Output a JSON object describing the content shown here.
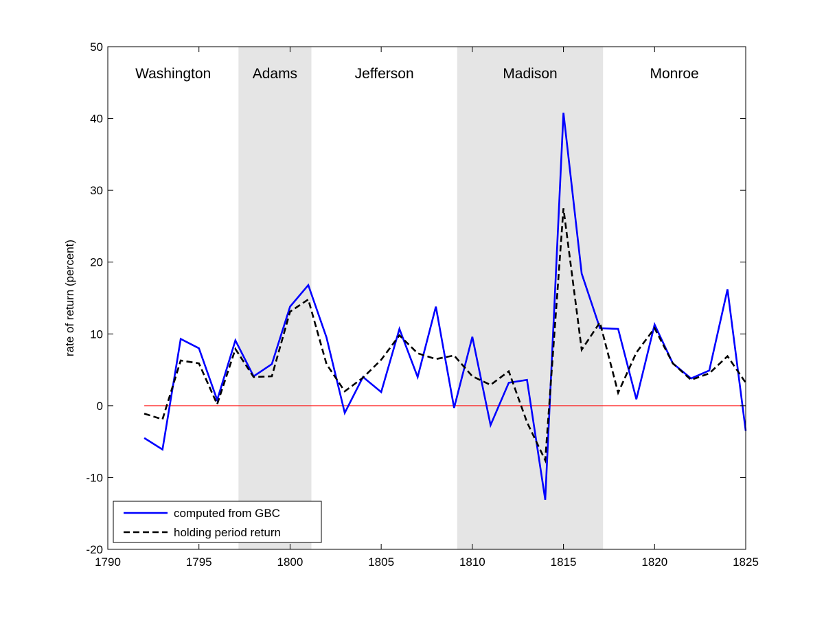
{
  "chart_data": {
    "type": "line",
    "title": "",
    "xlabel": "",
    "ylabel": "rate of return (percent)",
    "xlim": [
      1790,
      1825
    ],
    "ylim": [
      -20,
      50
    ],
    "xticks": [
      1790,
      1795,
      1800,
      1805,
      1810,
      1815,
      1820,
      1825
    ],
    "yticks": [
      -20,
      -10,
      0,
      10,
      20,
      30,
      40,
      50
    ],
    "grid": false,
    "legend_position": "bottom-left",
    "reference_line": {
      "y": 0,
      "color": "#ff0000"
    },
    "terms": [
      {
        "label": "Washington",
        "start": 1790,
        "end": 1797.17,
        "shaded": false
      },
      {
        "label": "Adams",
        "start": 1797.17,
        "end": 1801.17,
        "shaded": true
      },
      {
        "label": "Jefferson",
        "start": 1801.17,
        "end": 1809.17,
        "shaded": false
      },
      {
        "label": "Madison",
        "start": 1809.17,
        "end": 1817.17,
        "shaded": true
      },
      {
        "label": "Monroe",
        "start": 1817.17,
        "end": 1825,
        "shaded": false
      }
    ],
    "shade_color": "#e5e5e5",
    "x": [
      1792,
      1793,
      1794,
      1795,
      1796,
      1797,
      1798,
      1799,
      1800,
      1801,
      1802,
      1803,
      1804,
      1805,
      1806,
      1807,
      1808,
      1809,
      1810,
      1811,
      1812,
      1813,
      1814,
      1815,
      1816,
      1817,
      1818,
      1819,
      1820,
      1821,
      1822,
      1823,
      1824,
      1825
    ],
    "series": [
      {
        "name": "computed from GBC",
        "color": "#0000ff",
        "style": "solid",
        "values": [
          -4.5,
          -6.1,
          9.3,
          8.0,
          0.8,
          9.1,
          4.1,
          5.8,
          13.8,
          16.8,
          9.5,
          -1.0,
          4.0,
          1.9,
          10.7,
          4.0,
          13.8,
          -0.3,
          9.6,
          -2.7,
          3.2,
          3.6,
          -13.1,
          40.8,
          18.4,
          10.8,
          10.7,
          0.9,
          11.3,
          5.9,
          3.8,
          4.9,
          16.2,
          -3.5
        ]
      },
      {
        "name": "holding period return",
        "color": "#000000",
        "style": "dashed",
        "values": [
          -1.1,
          -1.9,
          6.3,
          5.9,
          0.2,
          7.9,
          4.0,
          4.1,
          13.1,
          14.8,
          5.8,
          2.0,
          3.9,
          6.4,
          9.8,
          7.3,
          6.5,
          7.0,
          4.1,
          2.9,
          4.8,
          -2.3,
          -7.6,
          27.5,
          7.8,
          11.6,
          1.8,
          7.4,
          10.8,
          5.9,
          3.6,
          4.5,
          6.9,
          3.2
        ]
      }
    ]
  }
}
